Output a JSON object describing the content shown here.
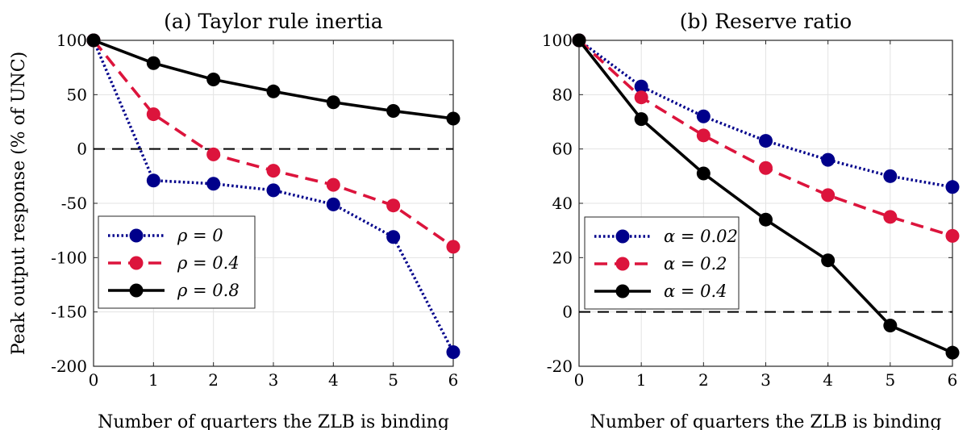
{
  "chart_data": [
    {
      "type": "line",
      "title": "(a) Taylor rule inertia",
      "xlabel": "Number of quarters the ZLB is binding",
      "ylabel": "Peak output response (% of UNC)",
      "x": [
        0,
        1,
        2,
        3,
        4,
        5,
        6
      ],
      "xlim": [
        0,
        6
      ],
      "ylim": [
        -200,
        100
      ],
      "xticks": [
        "0",
        "1",
        "2",
        "3",
        "4",
        "5",
        "6"
      ],
      "yticks": [
        "100",
        "50",
        "0",
        "-50",
        "-100",
        "-150",
        "-200"
      ],
      "ytick_values": [
        100,
        50,
        0,
        -50,
        -100,
        -150,
        -200
      ],
      "zero_line": true,
      "grid": true,
      "legend_position": "bottom-left",
      "series": [
        {
          "name": "ρ = 0",
          "style": "dotted",
          "color": "#00008B",
          "values": [
            100,
            -29,
            -32,
            -38,
            -51,
            -81,
            -187
          ]
        },
        {
          "name": "ρ = 0.4",
          "style": "dashed",
          "color": "#DC143C",
          "values": [
            100,
            32,
            -5,
            -20,
            -33,
            -52,
            -90
          ]
        },
        {
          "name": "ρ = 0.8",
          "style": "solid",
          "color": "#000000",
          "values": [
            100,
            79,
            64,
            53,
            43,
            35,
            28
          ]
        }
      ]
    },
    {
      "type": "line",
      "title": "(b) Reserve ratio",
      "xlabel": "Number of quarters the ZLB is binding",
      "ylabel": "",
      "x": [
        0,
        1,
        2,
        3,
        4,
        5,
        6
      ],
      "xlim": [
        0,
        6
      ],
      "ylim": [
        -20,
        100
      ],
      "xticks": [
        "0",
        "1",
        "2",
        "3",
        "4",
        "5",
        "6"
      ],
      "yticks": [
        "100",
        "80",
        "60",
        "40",
        "20",
        "0",
        "-20"
      ],
      "ytick_values": [
        100,
        80,
        60,
        40,
        20,
        0,
        -20
      ],
      "zero_line": true,
      "grid": true,
      "legend_position": "bottom-left",
      "series": [
        {
          "name": "α = 0.02",
          "style": "dotted",
          "color": "#00008B",
          "values": [
            100,
            83,
            72,
            63,
            56,
            50,
            46
          ]
        },
        {
          "name": "α = 0.2",
          "style": "dashed",
          "color": "#DC143C",
          "values": [
            100,
            79,
            65,
            53,
            43,
            35,
            28
          ]
        },
        {
          "name": "α = 0.4",
          "style": "solid",
          "color": "#000000",
          "values": [
            100,
            71,
            51,
            34,
            19,
            -5,
            -15
          ]
        }
      ]
    }
  ]
}
